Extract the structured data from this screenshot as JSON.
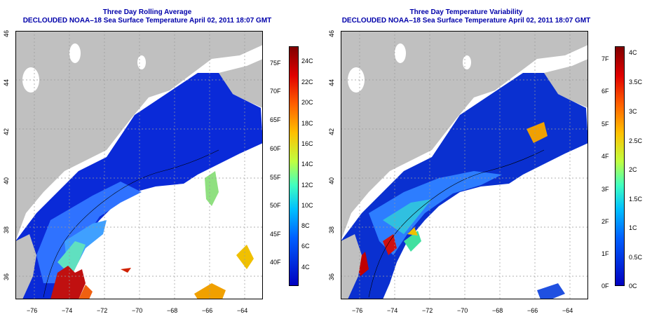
{
  "left_panel": {
    "title": "Three Day Rolling Average",
    "subtitle": "DECLOUDED NOAA–18 Sea Surface Temperature April 02, 2011 18:07 GMT",
    "x_ticks": [
      "−76",
      "−74",
      "−72",
      "−70",
      "−68",
      "−66",
      "−64"
    ],
    "y_ticks": [
      "46",
      "44",
      "42",
      "40",
      "38",
      "36"
    ],
    "colorbar_f": [
      "75F",
      "70F",
      "65F",
      "60F",
      "55F",
      "50F",
      "45F",
      "40F"
    ],
    "colorbar_c": [
      "24C",
      "22C",
      "20C",
      "18C",
      "16C",
      "14C",
      "12C",
      "10C",
      "8C",
      "6C",
      "4C"
    ]
  },
  "right_panel": {
    "title": "Three Day Temperature Variability",
    "subtitle": "DECLOUDED NOAA–18 Sea Surface Temperature April 02, 2011 18:07 GMT",
    "x_ticks": [
      "−76",
      "−74",
      "−72",
      "−70",
      "−68",
      "−66",
      "−64"
    ],
    "y_ticks": [
      "46",
      "44",
      "42",
      "40",
      "38",
      "36"
    ],
    "colorbar_f": [
      "7F",
      "6F",
      "5F",
      "4F",
      "3F",
      "2F",
      "1F",
      "0F"
    ],
    "colorbar_c": [
      "4C",
      "3.5C",
      "3C",
      "2.5C",
      "2C",
      "1.5C",
      "1C",
      "0.5C",
      "0C"
    ]
  },
  "colors": {
    "land": "#c0c0c0",
    "title": "#0000aa",
    "grid": "#999999"
  }
}
